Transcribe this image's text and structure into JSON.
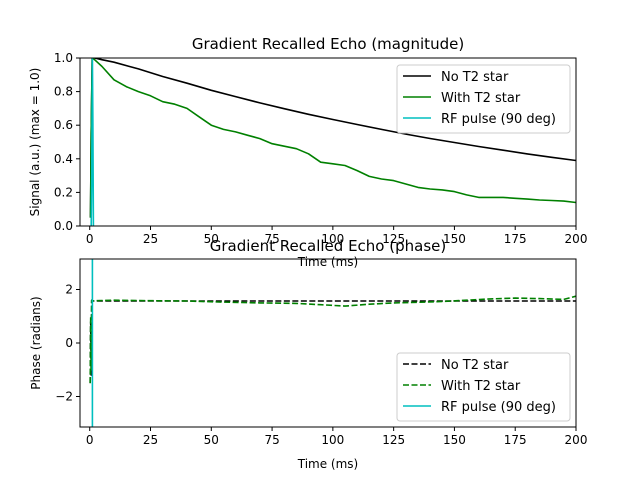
{
  "chart_data": [
    {
      "type": "line",
      "title": "Gradient Recalled Echo (magnitude)",
      "xlabel": "Time (ms)",
      "ylabel": "Signal (a.u.) (max = 1.0)",
      "xlim": [
        -4,
        200
      ],
      "ylim": [
        0,
        1.0
      ],
      "xticks": [
        0,
        25,
        50,
        75,
        100,
        125,
        150,
        175,
        200
      ],
      "yticks": [
        0,
        0.2,
        0.4,
        0.6,
        0.8,
        1.0
      ],
      "ytick_labels": [
        "0.0",
        "0.2",
        "0.4",
        "0.6",
        "0.8",
        "1.0"
      ],
      "legend_position": "top-right",
      "series": [
        {
          "name": "No T2 star",
          "color": "#000000",
          "style": "solid",
          "x": [
            0.3,
            0.6,
            1,
            2,
            5,
            10,
            20,
            30,
            40,
            50,
            60,
            70,
            80,
            90,
            100,
            110,
            120,
            130,
            140,
            150,
            160,
            170,
            180,
            190,
            200
          ],
          "y": [
            0.05,
            0.55,
            1.0,
            1.0,
            0.99,
            0.975,
            0.935,
            0.89,
            0.85,
            0.808,
            0.77,
            0.733,
            0.698,
            0.665,
            0.634,
            0.604,
            0.575,
            0.547,
            0.521,
            0.497,
            0.473,
            0.451,
            0.429,
            0.409,
            0.39
          ]
        },
        {
          "name": "With T2 star",
          "color": "#008000",
          "style": "solid",
          "x": [
            0.3,
            0.6,
            1,
            2,
            5,
            10,
            15,
            20,
            25,
            30,
            35,
            40,
            45,
            50,
            55,
            60,
            65,
            70,
            75,
            80,
            85,
            90,
            95,
            100,
            105,
            110,
            115,
            120,
            125,
            130,
            135,
            140,
            145,
            150,
            155,
            160,
            165,
            170,
            175,
            180,
            185,
            190,
            195,
            200
          ],
          "y": [
            0.05,
            0.55,
            1.0,
            0.99,
            0.95,
            0.87,
            0.83,
            0.8,
            0.775,
            0.74,
            0.725,
            0.7,
            0.65,
            0.6,
            0.575,
            0.56,
            0.54,
            0.52,
            0.49,
            0.475,
            0.46,
            0.43,
            0.38,
            0.37,
            0.36,
            0.33,
            0.295,
            0.28,
            0.27,
            0.25,
            0.23,
            0.22,
            0.215,
            0.205,
            0.185,
            0.17,
            0.17,
            0.17,
            0.165,
            0.16,
            0.155,
            0.152,
            0.148,
            0.14
          ]
        },
        {
          "name": "RF pulse (90 deg)",
          "color": "#00bfbf",
          "style": "solid",
          "x": [
            0.6,
            0.8,
            1.0,
            1.1,
            1.3,
            1.5
          ],
          "y": [
            0.0,
            0.3,
            0.8,
            1.0,
            0.6,
            0.0
          ]
        }
      ]
    },
    {
      "type": "line",
      "title": "Gradient Recalled Echo (phase)",
      "xlabel": "Time (ms)",
      "ylabel": "Phase (radians)",
      "xlim": [
        -4,
        200
      ],
      "ylim": [
        -3.14,
        3.14
      ],
      "xticks": [
        0,
        25,
        50,
        75,
        100,
        125,
        150,
        175,
        200
      ],
      "yticks": [
        -2,
        0,
        2
      ],
      "ytick_labels": [
        "−2",
        "0",
        "2"
      ],
      "legend_position": "bottom-right",
      "series": [
        {
          "name": "No T2 star",
          "color": "#000000",
          "style": "dashed",
          "x": [
            0.2,
            0.4,
            0.6,
            0.8,
            1.0,
            2,
            50,
            100,
            150,
            200
          ],
          "y": [
            -1.5,
            0.8,
            -1.2,
            1.6,
            1.57,
            1.57,
            1.57,
            1.57,
            1.57,
            1.57
          ]
        },
        {
          "name": "With T2 star",
          "color": "#008000",
          "style": "dashed",
          "x": [
            0.2,
            0.4,
            0.6,
            0.8,
            1.0,
            2,
            10,
            25,
            40,
            55,
            70,
            85,
            95,
            105,
            115,
            125,
            135,
            145,
            155,
            165,
            175,
            185,
            195,
            200
          ],
          "y": [
            -1.5,
            1.0,
            -1.0,
            1.6,
            1.57,
            1.58,
            1.6,
            1.58,
            1.57,
            1.53,
            1.5,
            1.48,
            1.43,
            1.38,
            1.45,
            1.5,
            1.52,
            1.55,
            1.6,
            1.65,
            1.68,
            1.66,
            1.63,
            1.75
          ]
        },
        {
          "name": "RF pulse (90 deg)",
          "color": "#00bfbf",
          "style": "solid",
          "x": [
            1.1,
            1.1
          ],
          "y": [
            -3.14,
            3.14
          ]
        }
      ]
    }
  ]
}
